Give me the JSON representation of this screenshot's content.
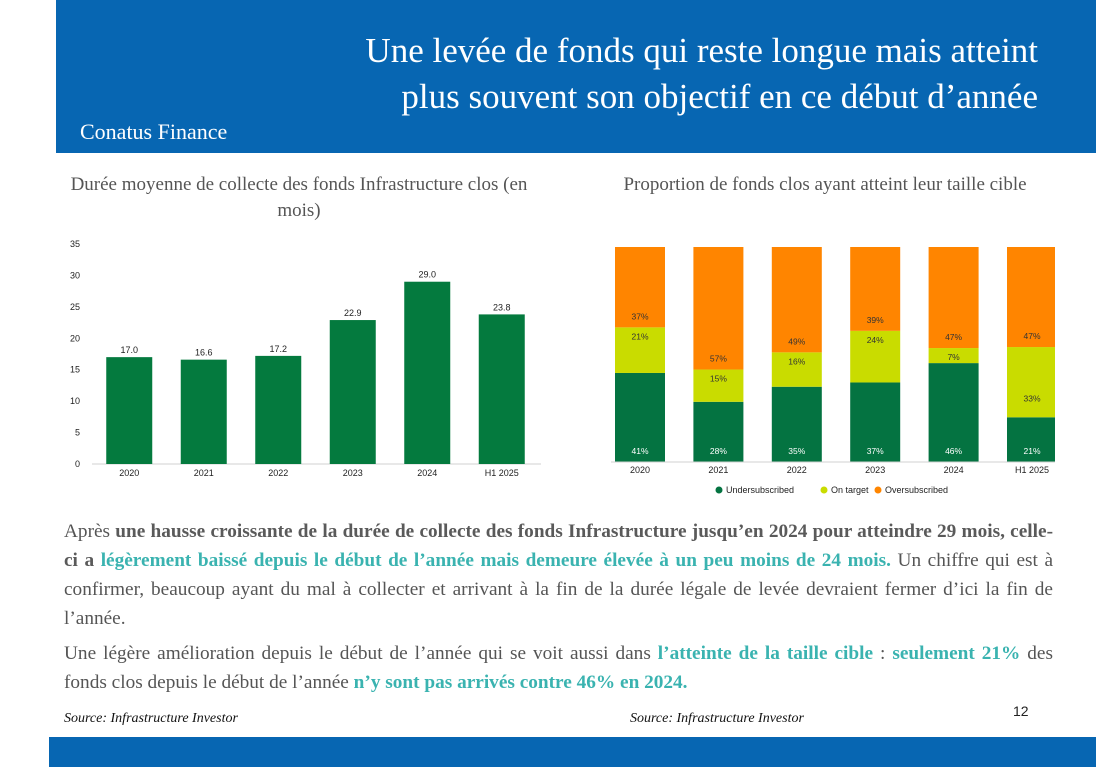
{
  "header": {
    "title_line1": "Une levée de fonds qui reste longue mais atteint",
    "title_line2": "plus souvent son objectif en ce début d’année",
    "brand": "Conatus Finance"
  },
  "colors": {
    "header_blue": "#0766b2",
    "bar_green": "#047a3e",
    "undersubscribed": "#047341",
    "on_target": "#c9dc00",
    "oversubscribed": "#ff8500",
    "highlight": "#3ab3b0"
  },
  "chart_data": [
    {
      "type": "bar",
      "title": "Durée moyenne de collecte des fonds Infrastructure clos (en mois)",
      "categories": [
        "2020",
        "2021",
        "2022",
        "2023",
        "2024",
        "H1 2025"
      ],
      "values": [
        17.0,
        16.6,
        17.2,
        22.9,
        29.0,
        23.8
      ],
      "value_labels": [
        "17.0",
        "16.6",
        "17.2",
        "22.9",
        "29.0",
        "23.8"
      ],
      "yticks": [
        "0",
        "5",
        "10",
        "15",
        "20",
        "25",
        "30",
        "35"
      ],
      "ylim": [
        0,
        35
      ],
      "grid": false
    },
    {
      "type": "bar",
      "stacked": true,
      "title": "Proportion de fonds clos ayant atteint leur taille cible",
      "categories": [
        "2020",
        "2021",
        "2022",
        "2023",
        "2024",
        "H1 2025"
      ],
      "series": [
        {
          "name": "Undersubscribed",
          "values": [
            41,
            28,
            35,
            37,
            46,
            21
          ],
          "labels": [
            "41%",
            "28%",
            "35%",
            "37%",
            "46%",
            "21%"
          ]
        },
        {
          "name": "On target",
          "values": [
            21,
            15,
            16,
            24,
            7,
            33
          ],
          "labels": [
            "21%",
            "15%",
            "16%",
            "24%",
            "7%",
            "33%"
          ]
        },
        {
          "name": "Oversubscribed",
          "values": [
            37,
            57,
            49,
            39,
            47,
            47
          ],
          "labels": [
            "37%",
            "57%",
            "49%",
            "39%",
            "47%",
            "47%"
          ]
        }
      ],
      "legend_position": "bottom"
    }
  ],
  "text": {
    "p1_a": "Après ",
    "p1_b": "une hausse croissante de la durée de collecte des fonds Infrastructure jusqu’en 2024 pour atteindre 29 mois, celle-ci a ",
    "p1_c": "légèrement baissé depuis le début de l’année mais demeure élevée à un peu moins de 24 mois.",
    "p1_d": " Un chiffre qui est à confirmer, beaucoup ayant du mal à collecter et arrivant à la fin de la durée légale de levée devraient fermer d’ici la fin de l’année.",
    "p2_a": "Une légère amélioration depuis le début de l’année qui se voit aussi dans ",
    "p2_b": "l’atteinte de la taille cible",
    "p2_c": " : ",
    "p2_d": "seulement 21%",
    "p2_e": " des fonds clos depuis le début de l’année ",
    "p2_f": "n’y sont pas arrivés contre 46% en 2024."
  },
  "footer": {
    "source_left": "Source: Infrastructure Investor",
    "source_right": "Source: Infrastructure Investor",
    "page_number": "12"
  }
}
